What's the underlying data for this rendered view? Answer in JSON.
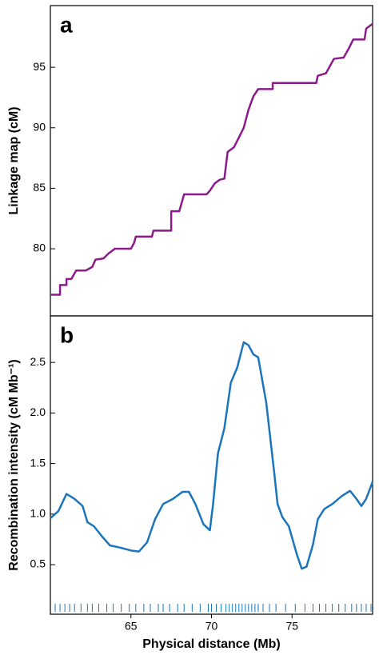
{
  "chart_data": [
    {
      "type": "line",
      "panel_label": "a",
      "ylabel": "Linkage map (cM)",
      "color": "#8b1a8b",
      "xlim": [
        60,
        80
      ],
      "ylim": [
        74.45,
        100.1
      ],
      "yticks": [
        80,
        85,
        90,
        95
      ],
      "x": [
        60,
        60.6,
        60.6,
        61.0,
        61.0,
        61.3,
        61.6,
        62.2,
        62.6,
        62.8,
        63.3,
        63.6,
        64.0,
        65.0,
        65.2,
        65.3,
        66.3,
        66.4,
        67.5,
        67.5,
        68.0,
        68.3,
        69.7,
        69.9,
        70.2,
        70.5,
        70.8,
        71.0,
        71.4,
        71.7,
        72.0,
        72.3,
        72.6,
        72.9,
        73.8,
        73.8,
        76.5,
        76.6,
        77.1,
        77.6,
        78.2,
        78.5,
        78.8,
        79.5,
        79.6,
        80
      ],
      "values": [
        76.2,
        76.2,
        77.0,
        77.0,
        77.5,
        77.5,
        78.2,
        78.2,
        78.5,
        79.1,
        79.2,
        79.6,
        80.0,
        80.0,
        80.5,
        81.0,
        81.0,
        81.5,
        81.5,
        83.1,
        83.1,
        84.5,
        84.5,
        84.8,
        85.4,
        85.7,
        85.8,
        88.0,
        88.4,
        89.2,
        90.0,
        91.5,
        92.6,
        93.2,
        93.2,
        93.7,
        93.7,
        94.3,
        94.5,
        95.7,
        95.8,
        96.5,
        97.3,
        97.3,
        98.2,
        98.6
      ]
    },
    {
      "type": "line",
      "panel_label": "b",
      "ylabel": "Recombination intensity (cM Mb⁻¹)",
      "xlabel": "Physical distance (Mb)",
      "color": "#1a75bc",
      "xlim": [
        60,
        80
      ],
      "ylim": [
        0.01,
        2.96
      ],
      "xticks": [
        65,
        70,
        75
      ],
      "yticks": [
        0.5,
        {
          "value": 1,
          "label": "1.0"
        },
        1.5,
        {
          "value": 2,
          "label": "2.0"
        },
        2.5
      ],
      "x": [
        60,
        60.5,
        61,
        61.5,
        62,
        62.3,
        62.7,
        63.2,
        63.7,
        64.3,
        65,
        65.5,
        66,
        66.5,
        67,
        67.6,
        68.2,
        68.6,
        69,
        69.5,
        69.9,
        70.1,
        70.4,
        70.8,
        71.2,
        71.6,
        72,
        72.3,
        72.6,
        72.9,
        73.4,
        73.9,
        74.1,
        74.4,
        74.8,
        75.3,
        75.6,
        75.9,
        76.3,
        76.6,
        77,
        77.5,
        78.1,
        78.6,
        79,
        79.3,
        79.6,
        80
      ],
      "values": [
        0.96,
        1.03,
        1.2,
        1.15,
        1.08,
        0.92,
        0.88,
        0.78,
        0.69,
        0.67,
        0.64,
        0.63,
        0.72,
        0.95,
        1.1,
        1.15,
        1.22,
        1.22,
        1.1,
        0.9,
        0.84,
        1.1,
        1.6,
        1.85,
        2.3,
        2.45,
        2.7,
        2.67,
        2.58,
        2.55,
        2.1,
        1.4,
        1.1,
        0.97,
        0.88,
        0.6,
        0.46,
        0.48,
        0.7,
        0.95,
        1.05,
        1.1,
        1.18,
        1.23,
        1.15,
        1.08,
        1.15,
        1.32
      ],
      "rug": [
        60.3,
        60.6,
        60.9,
        61.2,
        61.5,
        61.9,
        62.3,
        62.6,
        63.0,
        63.5,
        63.9,
        64.4,
        64.9,
        65.3,
        65.8,
        66.2,
        66.7,
        67.0,
        67.4,
        67.9,
        68.3,
        68.8,
        69.3,
        69.8,
        70.0,
        70.3,
        70.6,
        70.9,
        71.1,
        71.3,
        71.5,
        71.7,
        71.9,
        72.1,
        72.3,
        72.5,
        72.7,
        72.9,
        73.2,
        73.6,
        74.0,
        74.6,
        75.2,
        75.8,
        76.3,
        76.7,
        77.1,
        77.5,
        77.9,
        78.3,
        78.7,
        79.0,
        79.3,
        79.6,
        79.9
      ]
    }
  ]
}
